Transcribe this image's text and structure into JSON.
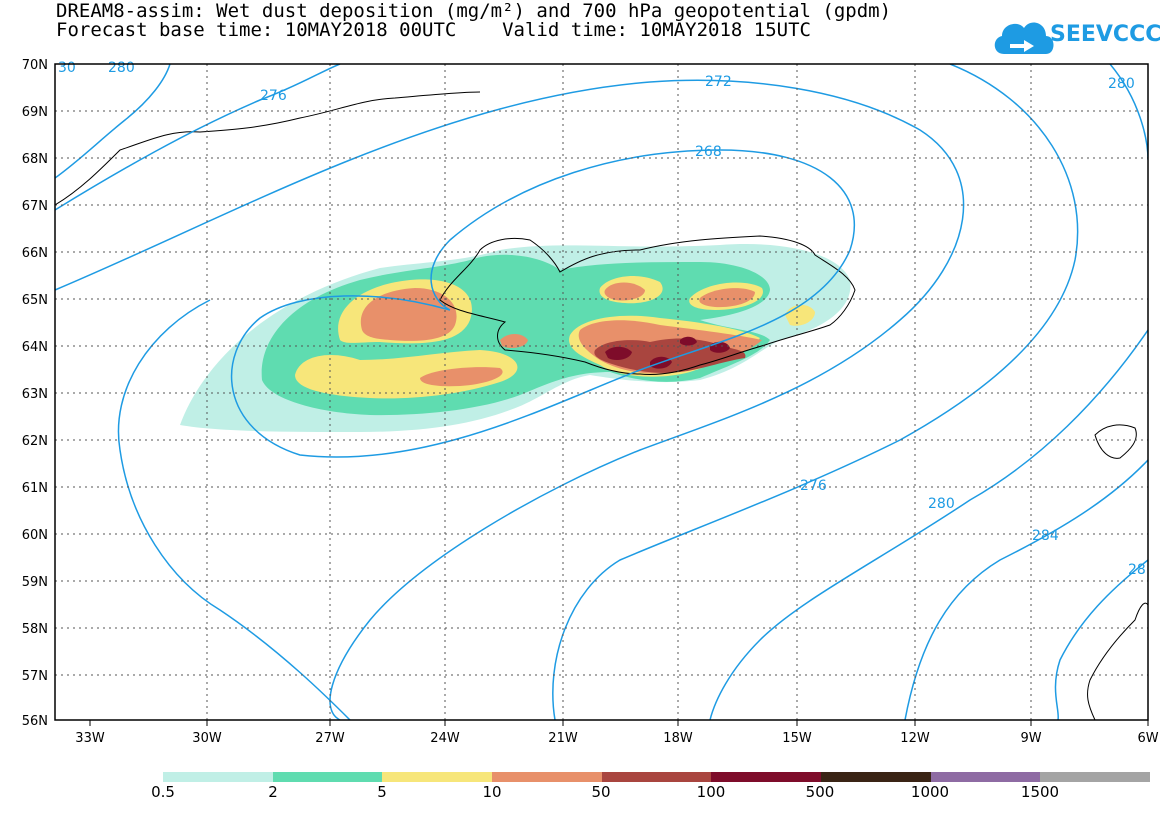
{
  "title_line1": "DREAM8-assim: Wet dust deposition (mg/m²) and 700 hPa geopotential (gpdm)",
  "title_line2": "Forecast base time: 10MAY2018 00UTC    Valid time: 10MAY2018 15UTC",
  "logo": {
    "text": "SEEVCCC",
    "icon": "cloud-icon",
    "color": "#1e9be3"
  },
  "map": {
    "lat_labels": [
      "70N",
      "69N",
      "68N",
      "67N",
      "66N",
      "65N",
      "64N",
      "63N",
      "62N",
      "61N",
      "60N",
      "59N",
      "58N",
      "57N",
      "56N"
    ],
    "lon_labels": [
      "33W",
      "30W",
      "27W",
      "24W",
      "21W",
      "18W",
      "15W",
      "12W",
      "9W",
      "6W"
    ],
    "contour_color": "#1e9be3",
    "contour_labels": [
      "280",
      "276",
      "272",
      "268",
      "280",
      "276",
      "280",
      "284",
      "28",
      "30"
    ]
  },
  "legend": {
    "colors": [
      "#c0efe6",
      "#5fdcb0",
      "#f7e67a",
      "#e8906a",
      "#a9453f",
      "#7e0c2a",
      "#3a2415",
      "#8e6ba3",
      "#a4a4a4"
    ],
    "labels": [
      "0.5",
      "2",
      "5",
      "10",
      "50",
      "100",
      "500",
      "1000",
      "1500"
    ]
  }
}
